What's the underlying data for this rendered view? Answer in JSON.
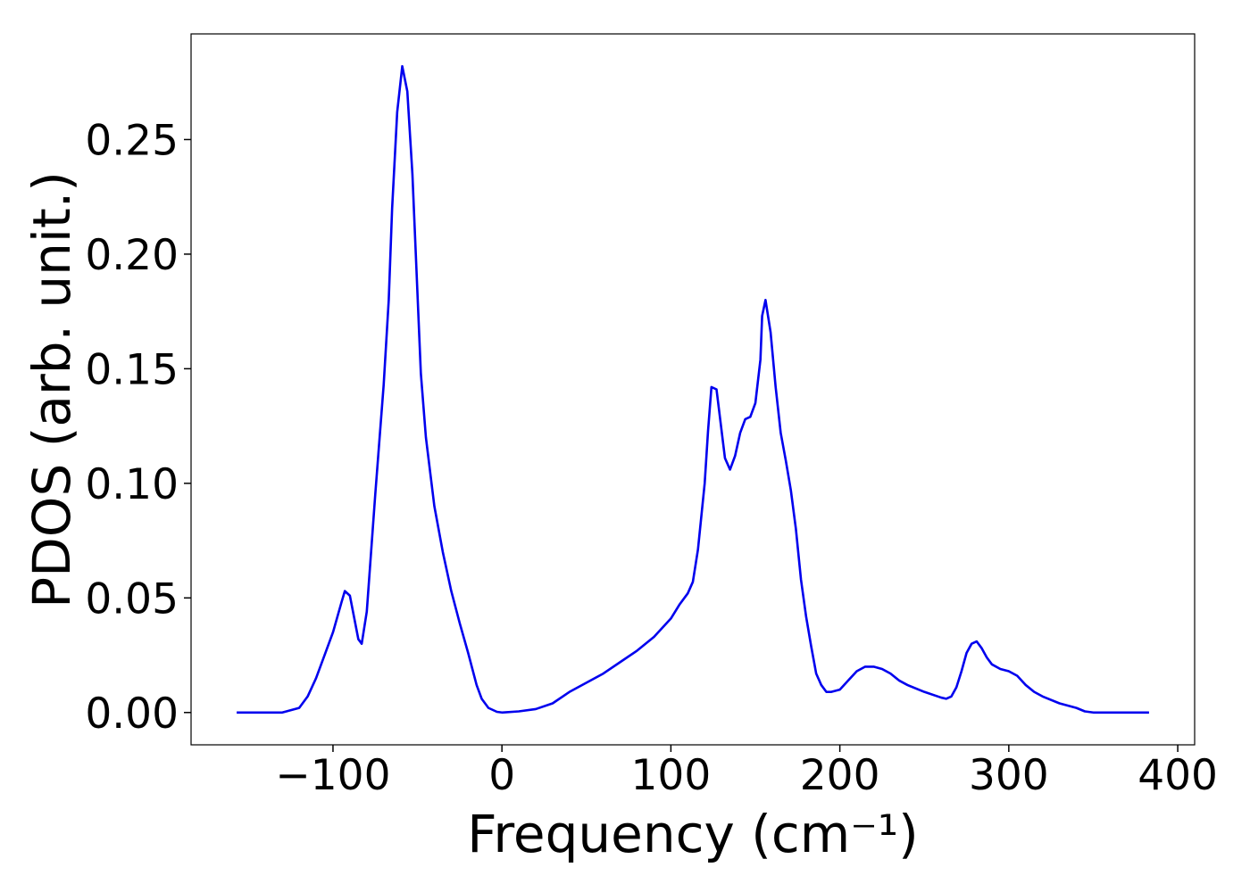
{
  "chart_data": {
    "type": "line",
    "xlabel": "Frequency (cm⁻¹)",
    "ylabel": "PDOS (arb. unit.)",
    "xlim": [
      -184,
      410
    ],
    "ylim": [
      -0.0141,
      0.2961
    ],
    "xticks": [
      {
        "value": -100,
        "label": "−100"
      },
      0,
      100,
      200,
      300,
      400
    ],
    "yticks": [
      {
        "value": 0,
        "label": "0.00"
      },
      {
        "value": 0.05,
        "label": "0.05"
      },
      {
        "value": 0.1,
        "label": "0.10"
      },
      {
        "value": 0.15,
        "label": "0.15"
      },
      {
        "value": 0.2,
        "label": "0.20"
      },
      {
        "value": 0.25,
        "label": "0.25"
      }
    ],
    "x": [
      -157,
      -130,
      -120,
      -115,
      -110,
      -105,
      -100,
      -95,
      -93,
      -90,
      -85,
      -83,
      -80,
      -75,
      -70,
      -67,
      -65,
      -62,
      -59,
      -56,
      -53,
      -48,
      -45,
      -40,
      -35,
      -30,
      -25,
      -20,
      -15,
      -12,
      -8,
      -3,
      0,
      10,
      20,
      30,
      40,
      50,
      60,
      70,
      80,
      90,
      100,
      105,
      110,
      113,
      116,
      120,
      122,
      124,
      127,
      132,
      135,
      138,
      141,
      144,
      147,
      150,
      153,
      154,
      156,
      159,
      162,
      165,
      168,
      171,
      174,
      177,
      180,
      183,
      186,
      189,
      192,
      195,
      200,
      205,
      210,
      215,
      220,
      225,
      230,
      235,
      240,
      250,
      260,
      263,
      266,
      269,
      272,
      275,
      278,
      281,
      284,
      287,
      290,
      295,
      300,
      305,
      310,
      315,
      320,
      330,
      340,
      345,
      350,
      383
    ],
    "series": [
      {
        "name": "PDOS",
        "color": "#0000ee",
        "values": [
          0,
          0,
          0.002,
          0.007,
          0.015,
          0.025,
          0.035,
          0.048,
          0.053,
          0.051,
          0.032,
          0.03,
          0.044,
          0.095,
          0.143,
          0.18,
          0.22,
          0.262,
          0.282,
          0.271,
          0.235,
          0.148,
          0.12,
          0.09,
          0.07,
          0.053,
          0.039,
          0.026,
          0.012,
          0.006,
          0.002,
          0.0003,
          0,
          0.0005,
          0.0015,
          0.004,
          0.009,
          0.013,
          0.017,
          0.022,
          0.027,
          0.033,
          0.041,
          0.047,
          0.052,
          0.057,
          0.071,
          0.1,
          0.123,
          0.142,
          0.141,
          0.111,
          0.106,
          0.112,
          0.122,
          0.128,
          0.129,
          0.135,
          0.154,
          0.173,
          0.18,
          0.166,
          0.142,
          0.122,
          0.11,
          0.097,
          0.08,
          0.058,
          0.042,
          0.029,
          0.017,
          0.012,
          0.009,
          0.009,
          0.01,
          0.014,
          0.018,
          0.02,
          0.02,
          0.019,
          0.017,
          0.014,
          0.012,
          0.009,
          0.0065,
          0.006,
          0.007,
          0.011,
          0.018,
          0.026,
          0.03,
          0.031,
          0.028,
          0.024,
          0.021,
          0.019,
          0.018,
          0.016,
          0.012,
          0.009,
          0.007,
          0.004,
          0.002,
          0.0005,
          0,
          0
        ]
      }
    ]
  }
}
